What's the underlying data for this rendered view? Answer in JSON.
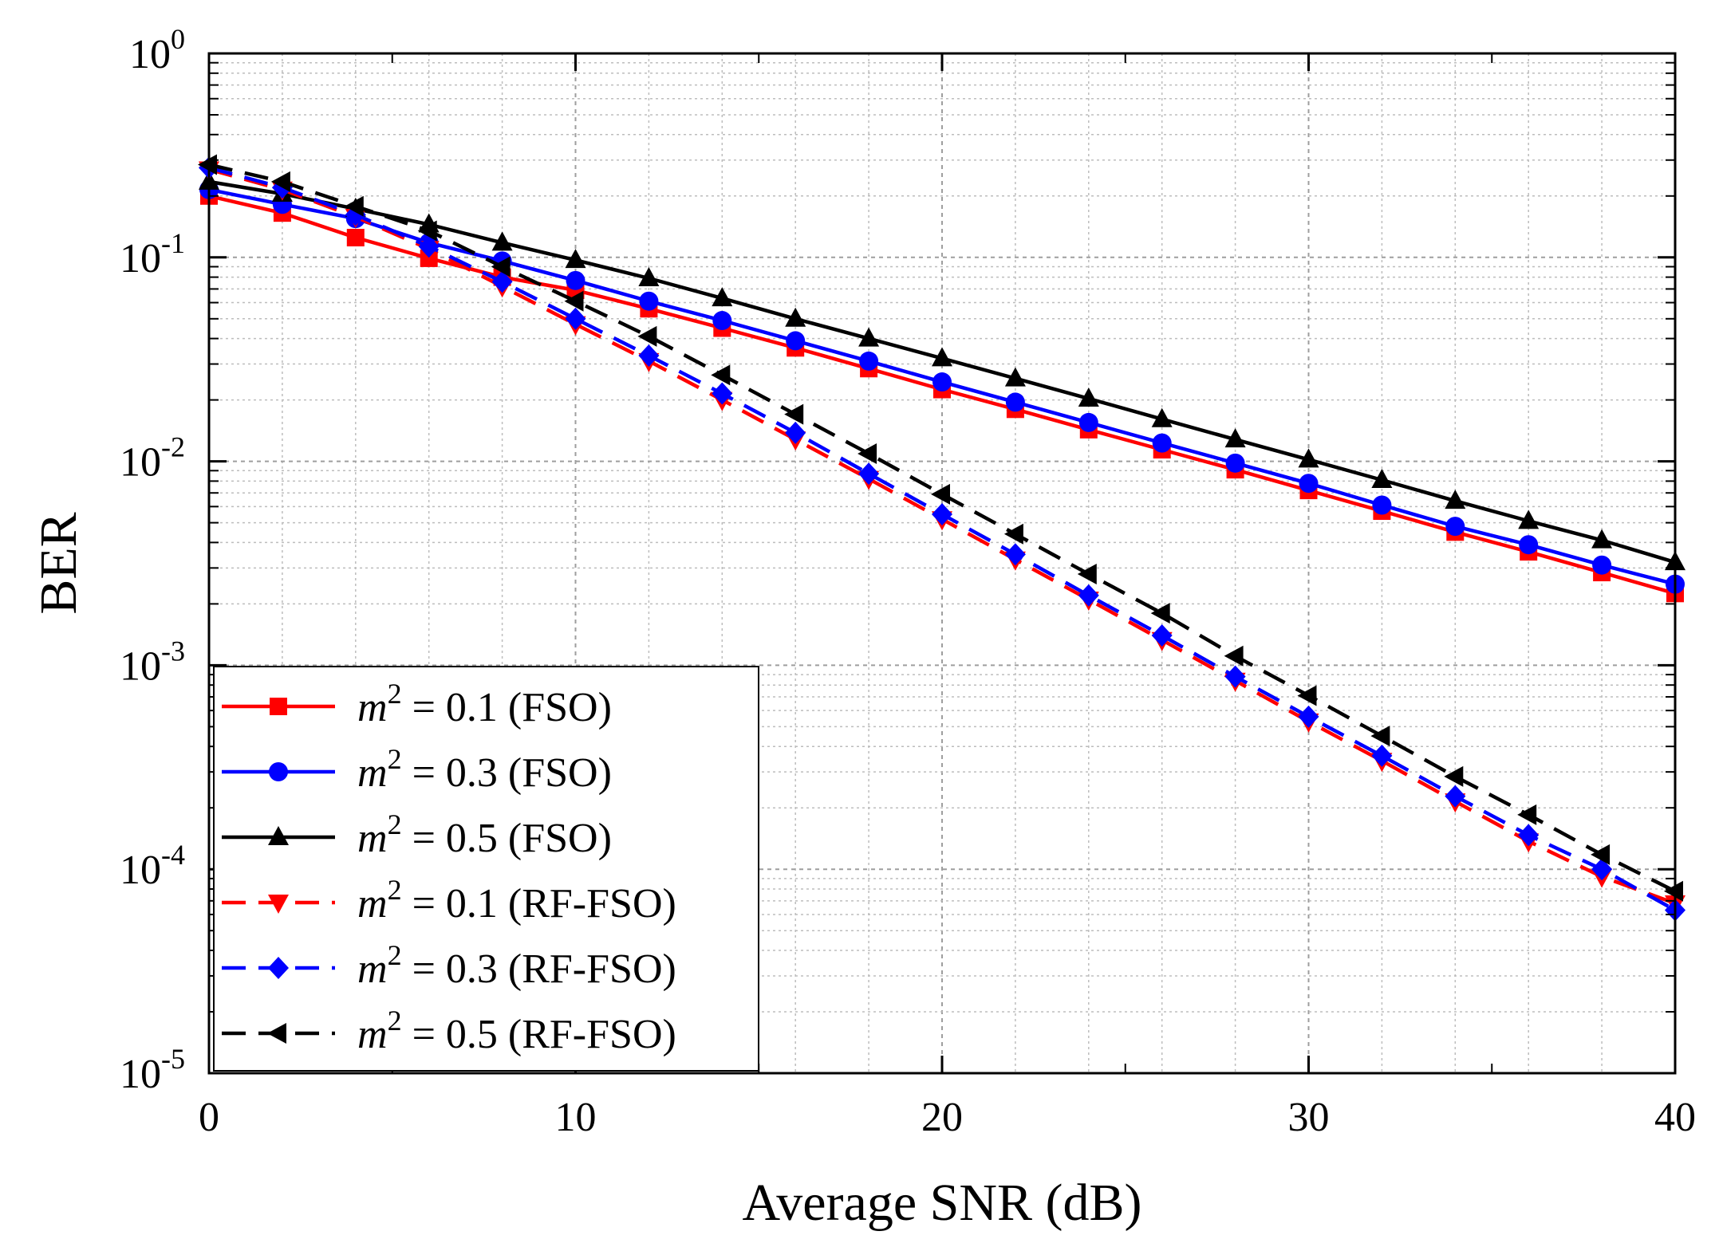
{
  "chart_data": {
    "type": "line",
    "title": "",
    "xlabel": "Average SNR (dB)",
    "ylabel": "BER",
    "xlim": [
      0,
      40
    ],
    "ylim": [
      1e-05,
      1
    ],
    "yscale": "log",
    "grid": true,
    "legend_position": "bottom-left",
    "x_ticks": [
      {
        "value": 0,
        "label": "0"
      },
      {
        "value": 10,
        "label": "10"
      },
      {
        "value": 20,
        "label": "20"
      },
      {
        "value": 30,
        "label": "30"
      },
      {
        "value": 40,
        "label": "40"
      }
    ],
    "y_ticks": [
      {
        "value": 1,
        "base": "10",
        "exp": "0"
      },
      {
        "value": 0.1,
        "base": "10",
        "exp": "-1"
      },
      {
        "value": 0.01,
        "base": "10",
        "exp": "-2"
      },
      {
        "value": 0.001,
        "base": "10",
        "exp": "-3"
      },
      {
        "value": 0.0001,
        "base": "10",
        "exp": "-4"
      },
      {
        "value": 1e-05,
        "base": "10",
        "exp": "-5"
      }
    ],
    "x": [
      0,
      2,
      4,
      6,
      8,
      10,
      12,
      14,
      16,
      18,
      20,
      22,
      24,
      26,
      28,
      30,
      32,
      34,
      36,
      38,
      40
    ],
    "series": [
      {
        "name": "m2 = 0.1 (FSO)",
        "legend_var": "m",
        "legend_sup": "2",
        "legend_rest": " = 0.1 (FSO)",
        "color": "#ff0000",
        "dashed": false,
        "marker": "square",
        "values": [
          0.2,
          0.165,
          0.125,
          0.099,
          0.08,
          0.069,
          0.056,
          0.045,
          0.036,
          0.0285,
          0.0225,
          0.018,
          0.0143,
          0.0114,
          0.0091,
          0.0072,
          0.0057,
          0.0045,
          0.0036,
          0.00285,
          0.00225
        ]
      },
      {
        "name": "m2 = 0.3 (FSO)",
        "legend_var": "m",
        "legend_sup": "2",
        "legend_rest": " = 0.3 (FSO)",
        "color": "#0000ff",
        "dashed": false,
        "marker": "circle",
        "values": [
          0.215,
          0.182,
          0.155,
          0.118,
          0.096,
          0.077,
          0.061,
          0.049,
          0.039,
          0.031,
          0.0245,
          0.0195,
          0.0155,
          0.0123,
          0.0098,
          0.0078,
          0.0061,
          0.0048,
          0.0039,
          0.0031,
          0.0025
        ]
      },
      {
        "name": "m2 = 0.5 (FSO)",
        "legend_var": "m",
        "legend_sup": "2",
        "legend_rest": " = 0.5 (FSO)",
        "color": "#000000",
        "dashed": false,
        "marker": "triangle-up",
        "values": [
          0.235,
          0.205,
          0.173,
          0.145,
          0.118,
          0.097,
          0.079,
          0.063,
          0.05,
          0.04,
          0.032,
          0.0255,
          0.0203,
          0.0161,
          0.0128,
          0.0102,
          0.0081,
          0.0064,
          0.0051,
          0.0041,
          0.0032
        ]
      },
      {
        "name": "m2 = 0.1 (RF-FSO)",
        "legend_var": "m",
        "legend_sup": "2",
        "legend_rest": " = 0.1 (RF-FSO)",
        "color": "#ff0000",
        "dashed": true,
        "marker": "triangle-down",
        "values": [
          0.27,
          0.215,
          0.158,
          0.11,
          0.072,
          0.047,
          0.031,
          0.02,
          0.0128,
          0.0082,
          0.0052,
          0.0033,
          0.0021,
          0.00133,
          0.00084,
          0.00053,
          0.00034,
          0.000215,
          0.000137,
          9.2e-05,
          6.8e-05
        ]
      },
      {
        "name": "m2 = 0.3 (RF-FSO)",
        "legend_var": "m",
        "legend_sup": "2",
        "legend_rest": " = 0.3 (RF-FSO)",
        "color": "#0000ff",
        "dashed": true,
        "marker": "diamond",
        "values": [
          0.275,
          0.22,
          0.162,
          0.113,
          0.076,
          0.05,
          0.033,
          0.0215,
          0.0138,
          0.0087,
          0.0055,
          0.0035,
          0.0022,
          0.0014,
          0.00088,
          0.00056,
          0.00036,
          0.000228,
          0.000147,
          0.0001,
          6.3e-05
        ]
      },
      {
        "name": "m2 = 0.5 (RF-FSO)",
        "legend_var": "m",
        "legend_sup": "2",
        "legend_rest": " = 0.5 (RF-FSO)",
        "color": "#000000",
        "dashed": true,
        "marker": "triangle-left",
        "values": [
          0.285,
          0.235,
          0.178,
          0.135,
          0.09,
          0.061,
          0.041,
          0.0265,
          0.017,
          0.0109,
          0.0069,
          0.0044,
          0.0028,
          0.0018,
          0.00111,
          0.00071,
          0.00045,
          0.000285,
          0.000185,
          0.000118,
          7.8e-05
        ]
      }
    ]
  }
}
